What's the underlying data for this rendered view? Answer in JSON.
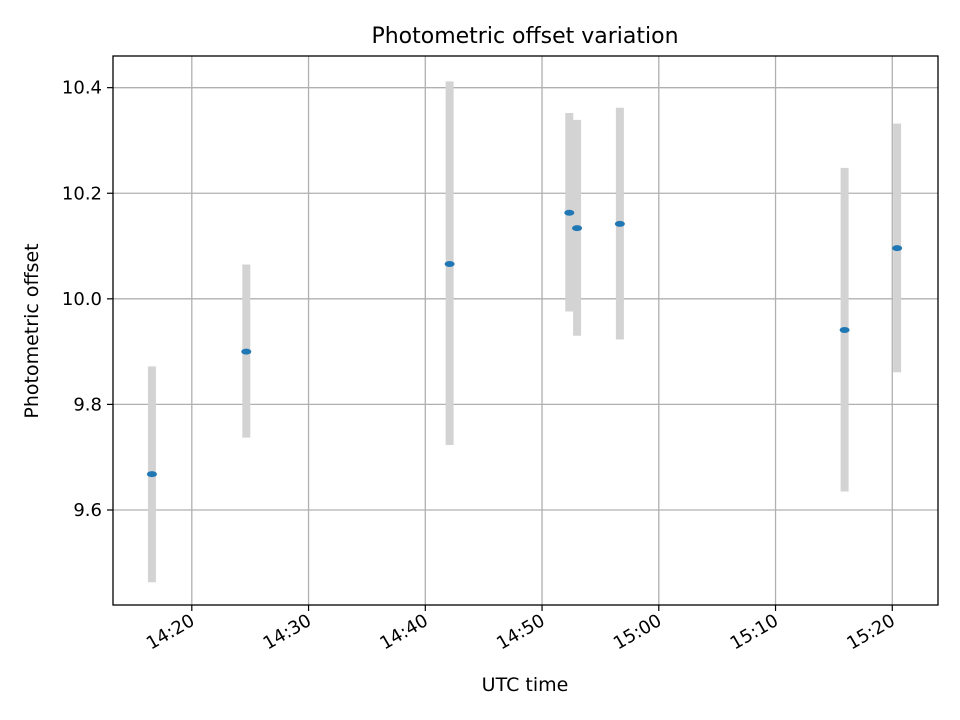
{
  "chart_data": {
    "type": "scatter",
    "title": "Photometric offset variation",
    "xlabel": "UTC time",
    "ylabel": "Photometric offset",
    "x_ticks": [
      "14:20",
      "14:30",
      "14:40",
      "14:50",
      "15:00",
      "15:10",
      "15:20"
    ],
    "y_ticks": [
      "9.6",
      "9.8",
      "10.0",
      "10.2",
      "10.4"
    ],
    "xlim": [
      "14:13:15",
      "15:23:55"
    ],
    "ylim": [
      9.42,
      10.46
    ],
    "grid": true,
    "legend": false,
    "series": [
      {
        "points": [
          {
            "x": "14:16:35",
            "y": 9.668,
            "err_low": 9.463,
            "err_high": 9.872
          },
          {
            "x": "14:24:40",
            "y": 9.9,
            "err_low": 9.737,
            "err_high": 10.065
          },
          {
            "x": "14:42:05",
            "y": 10.066,
            "err_low": 9.723,
            "err_high": 10.412
          },
          {
            "x": "14:52:20",
            "y": 10.163,
            "err_low": 9.976,
            "err_high": 10.352
          },
          {
            "x": "14:53:00",
            "y": 10.134,
            "err_low": 9.93,
            "err_high": 10.339
          },
          {
            "x": "14:56:40",
            "y": 10.142,
            "err_low": 9.923,
            "err_high": 10.362
          },
          {
            "x": "15:15:55",
            "y": 9.941,
            "err_low": 9.635,
            "err_high": 10.248
          },
          {
            "x": "15:20:25",
            "y": 10.096,
            "err_low": 9.861,
            "err_high": 10.332
          }
        ]
      }
    ]
  },
  "colors": {
    "marker": "#1f77b4",
    "errorbar": "#d3d3d3",
    "grid": "#b0b0b0",
    "axes": "#000000",
    "background": "#ffffff"
  }
}
